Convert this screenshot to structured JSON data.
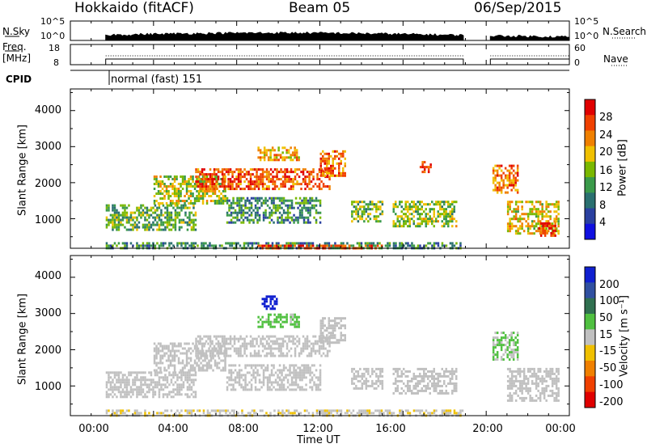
{
  "header": {
    "radar": "Hokkaido (fitACF)",
    "beam": "Beam 05",
    "date": "06/Sep/2015"
  },
  "top_panels": {
    "nsky_label": "N.Sky",
    "nsearch_label": "N.Search",
    "nsky_ticks": [
      "10^5",
      "10^0"
    ],
    "nsearch_ticks": [
      "10^5",
      "10^0"
    ],
    "freq_label_1": "Freq.",
    "freq_label_2": "[MHz]",
    "freq_ticks": [
      "18",
      "8"
    ],
    "nave_label": "Nave",
    "nave_ticks": [
      "60",
      "0"
    ],
    "cpid_label": "CPID",
    "cpid_value": "normal (fast) 151"
  },
  "axes": {
    "ylabel": "Slant Range [km]",
    "xlabel": "Time UT",
    "yticks": [
      "4000",
      "3000",
      "2000",
      "1000"
    ],
    "xticks": [
      "00:00",
      "04:00",
      "08:00",
      "12:00",
      "16:00",
      "20:00",
      "00:00"
    ]
  },
  "colorbars": {
    "power": {
      "label": "Power [dB]",
      "ticks": [
        "28",
        "24",
        "20",
        "16",
        "12",
        "8",
        "4"
      ],
      "colors": [
        "#e00000",
        "#f04000",
        "#f08000",
        "#f0c000",
        "#7ab800",
        "#3a9a4a",
        "#2a7070",
        "#2a40a0",
        "#1010e0"
      ]
    },
    "velocity": {
      "label": "Velocity [m s⁻¹]",
      "ticks": [
        "200",
        "100",
        "50",
        "15",
        "-15",
        "-50",
        "-100",
        "-200"
      ],
      "colors": [
        "#1020d0",
        "#3050a0",
        "#307050",
        "#50c040",
        "#c0c0c0",
        "#f0c000",
        "#f08000",
        "#f04000",
        "#e00000"
      ]
    }
  },
  "chart_data": [
    {
      "type": "heatmap",
      "name": "Power",
      "x_unit": "hours UT",
      "xlim": [
        0,
        24
      ],
      "ylim": [
        180,
        4600
      ],
      "colorbar_label": "Power [dB]",
      "colorbar_range": [
        3,
        31
      ],
      "regions": [
        {
          "t0": 1.7,
          "t1": 18.9,
          "r0": 180,
          "r1": 350,
          "level": 12
        },
        {
          "t0": 1.7,
          "t1": 6.0,
          "r0": 700,
          "r1": 1400,
          "level": 15
        },
        {
          "t0": 4.0,
          "t1": 7.5,
          "r0": 1400,
          "r1": 2200,
          "level": 18
        },
        {
          "t0": 6.0,
          "t1": 12.5,
          "r0": 1800,
          "r1": 2400,
          "level": 26
        },
        {
          "t0": 12.0,
          "t1": 13.2,
          "r0": 2200,
          "r1": 2900,
          "level": 24
        },
        {
          "t0": 7.5,
          "t1": 12.0,
          "r0": 900,
          "r1": 1600,
          "level": 13
        },
        {
          "t0": 9.0,
          "t1": 11.0,
          "r0": 2600,
          "r1": 3000,
          "level": 22
        },
        {
          "t0": 13.5,
          "t1": 15.0,
          "r0": 900,
          "r1": 1500,
          "level": 16
        },
        {
          "t0": 15.5,
          "t1": 18.6,
          "r0": 800,
          "r1": 1500,
          "level": 17
        },
        {
          "t0": 16.8,
          "t1": 17.3,
          "r0": 2300,
          "r1": 2600,
          "level": 28
        },
        {
          "t0": 9.0,
          "t1": 15.0,
          "r0": 190,
          "r1": 280,
          "level": 27
        },
        {
          "t0": 20.3,
          "t1": 21.5,
          "r0": 1700,
          "r1": 2500,
          "level": 24
        },
        {
          "t0": 21.0,
          "t1": 23.5,
          "r0": 600,
          "r1": 1500,
          "level": 20
        },
        {
          "t0": 22.5,
          "t1": 23.3,
          "r0": 500,
          "r1": 900,
          "level": 27
        }
      ]
    },
    {
      "type": "heatmap",
      "name": "Velocity",
      "x_unit": "hours UT",
      "xlim": [
        0,
        24
      ],
      "ylim": [
        180,
        4600
      ],
      "colorbar_label": "Velocity [m s⁻¹]",
      "colorbar_range": [
        -250,
        250
      ],
      "regions": [
        {
          "t0": 1.7,
          "t1": 18.9,
          "r0": 180,
          "r1": 350,
          "level": -20
        },
        {
          "t0": 1.7,
          "t1": 6.0,
          "r0": 700,
          "r1": 1400,
          "level": 0
        },
        {
          "t0": 4.0,
          "t1": 7.5,
          "r0": 1400,
          "r1": 2200,
          "level": 0
        },
        {
          "t0": 6.0,
          "t1": 12.5,
          "r0": 1800,
          "r1": 2400,
          "level": 0
        },
        {
          "t0": 12.0,
          "t1": 13.2,
          "r0": 2200,
          "r1": 2900,
          "level": 0
        },
        {
          "t0": 7.5,
          "t1": 12.0,
          "r0": 900,
          "r1": 1600,
          "level": 0
        },
        {
          "t0": 9.0,
          "t1": 11.0,
          "r0": 2600,
          "r1": 3000,
          "level": 40
        },
        {
          "t0": 9.2,
          "t1": 9.9,
          "r0": 3100,
          "r1": 3500,
          "level": 210
        },
        {
          "t0": 13.5,
          "t1": 15.0,
          "r0": 900,
          "r1": 1500,
          "level": 0
        },
        {
          "t0": 15.5,
          "t1": 18.6,
          "r0": 800,
          "r1": 1500,
          "level": 0
        },
        {
          "t0": 20.3,
          "t1": 21.5,
          "r0": 1700,
          "r1": 2500,
          "level": 30
        },
        {
          "t0": 21.0,
          "t1": 23.5,
          "r0": 600,
          "r1": 1500,
          "level": 0
        }
      ]
    }
  ]
}
